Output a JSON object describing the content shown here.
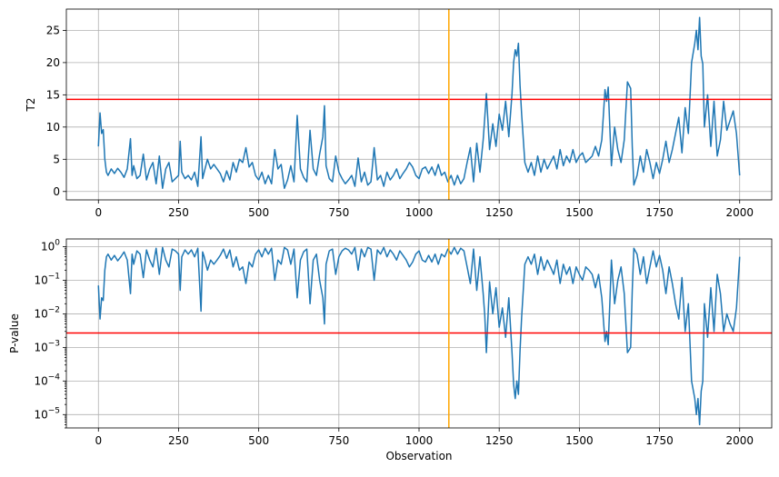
{
  "chart_data": [
    {
      "type": "line",
      "title": "",
      "xlabel": "",
      "ylabel": "T2",
      "xlim": [
        -100,
        2100
      ],
      "ylim": [
        -1.3,
        28.3
      ],
      "xticks": [
        0,
        250,
        500,
        750,
        1000,
        1250,
        1500,
        1750,
        2000
      ],
      "yticks": [
        0,
        5,
        10,
        15,
        20,
        25
      ],
      "grid": true,
      "hlines": [
        {
          "y": 14.3,
          "color": "#ff0000"
        }
      ],
      "vlines": [
        {
          "x": 1093,
          "color": "#ffa500"
        }
      ],
      "series": [
        {
          "color": "#1f77b4",
          "x": [
            0,
            5,
            10,
            15,
            20,
            25,
            30,
            40,
            50,
            60,
            70,
            80,
            90,
            100,
            105,
            110,
            120,
            130,
            140,
            150,
            160,
            170,
            180,
            190,
            200,
            210,
            220,
            230,
            240,
            250,
            255,
            260,
            270,
            280,
            290,
            300,
            310,
            320,
            325,
            330,
            340,
            350,
            360,
            370,
            380,
            390,
            400,
            410,
            420,
            430,
            440,
            450,
            460,
            470,
            480,
            490,
            500,
            510,
            520,
            530,
            540,
            550,
            560,
            570,
            580,
            590,
            600,
            610,
            620,
            630,
            640,
            650,
            660,
            670,
            680,
            690,
            700,
            705,
            710,
            720,
            730,
            740,
            750,
            760,
            770,
            780,
            790,
            800,
            810,
            820,
            830,
            840,
            850,
            860,
            870,
            880,
            890,
            900,
            910,
            920,
            930,
            940,
            950,
            960,
            970,
            980,
            990,
            1000,
            1010,
            1020,
            1030,
            1040,
            1050,
            1060,
            1070,
            1080,
            1090,
            1100,
            1110,
            1120,
            1130,
            1140,
            1150,
            1160,
            1170,
            1180,
            1190,
            1200,
            1205,
            1210,
            1220,
            1230,
            1240,
            1250,
            1260,
            1270,
            1280,
            1290,
            1295,
            1300,
            1305,
            1310,
            1315,
            1320,
            1330,
            1340,
            1350,
            1360,
            1370,
            1380,
            1390,
            1400,
            1410,
            1420,
            1430,
            1440,
            1450,
            1460,
            1470,
            1480,
            1490,
            1500,
            1510,
            1520,
            1530,
            1540,
            1550,
            1560,
            1570,
            1580,
            1585,
            1590,
            1595,
            1600,
            1610,
            1620,
            1630,
            1640,
            1650,
            1660,
            1665,
            1670,
            1680,
            1690,
            1700,
            1710,
            1720,
            1730,
            1740,
            1750,
            1760,
            1770,
            1780,
            1790,
            1800,
            1810,
            1820,
            1830,
            1840,
            1850,
            1860,
            1865,
            1870,
            1875,
            1880,
            1885,
            1890,
            1900,
            1910,
            1920,
            1930,
            1940,
            1950,
            1960,
            1970,
            1980,
            1990,
            2000
          ],
          "y": [
            7,
            12.2,
            9,
            9.6,
            5,
            3,
            2.5,
            3.5,
            2.8,
            3.6,
            3,
            2.2,
            3.5,
            8.2,
            2.5,
            4,
            2,
            2.5,
            5.8,
            1.8,
            3.5,
            4.5,
            1.2,
            5.5,
            0.5,
            3.5,
            4.5,
            1.5,
            2,
            2.5,
            7.8,
            3,
            2,
            2.5,
            1.8,
            3,
            0.8,
            8.5,
            2,
            3,
            5,
            3.5,
            4.2,
            3.5,
            2.8,
            1.5,
            3.2,
            1.8,
            4.5,
            3,
            5,
            4.5,
            6.8,
            3.8,
            4.5,
            2.5,
            1.8,
            3,
            1.2,
            2.5,
            1.2,
            6.5,
            3.5,
            4.2,
            0.5,
            1.8,
            4,
            1.5,
            11.8,
            3.5,
            2.2,
            1.5,
            9.5,
            3.5,
            2.5,
            5.8,
            8.5,
            13.3,
            4,
            2,
            1.5,
            5.5,
            3,
            2,
            1.2,
            1.8,
            2.5,
            0.8,
            5.2,
            1.5,
            3,
            1,
            1.5,
            6.8,
            1.8,
            2.5,
            0.8,
            3,
            1.8,
            2.5,
            3.5,
            2,
            2.8,
            3.5,
            4.5,
            3.8,
            2.5,
            2,
            3.5,
            3.8,
            2.8,
            3.8,
            2.5,
            4.2,
            2.5,
            3,
            1.5,
            2.5,
            1,
            2.5,
            1.2,
            2,
            4.5,
            6.8,
            1.5,
            7.5,
            3,
            8,
            11.5,
            15.2,
            6.5,
            10.5,
            7,
            12,
            9.5,
            14,
            8.5,
            15.2,
            20,
            22,
            21,
            23,
            16.5,
            12,
            4.5,
            3,
            4.5,
            2.5,
            5.5,
            3,
            5,
            3.5,
            4.5,
            5.5,
            3.5,
            6.5,
            4,
            5.5,
            4.5,
            6.5,
            4.5,
            5.5,
            6,
            4.5,
            5,
            5.5,
            7,
            5.5,
            8,
            15.8,
            14,
            16.2,
            10,
            4,
            10,
            6.5,
            4.5,
            8,
            17,
            16,
            7,
            1,
            2.5,
            5.5,
            3,
            6.5,
            4.5,
            2,
            4.5,
            2.8,
            5,
            7.8,
            4.5,
            6.5,
            9,
            11.5,
            6,
            13,
            9,
            20,
            23,
            25,
            22,
            27,
            21,
            19.8,
            10,
            15,
            7,
            14,
            5.5,
            8,
            14,
            9.5,
            11,
            12.5,
            9,
            2.5
          ]
        }
      ]
    },
    {
      "type": "line",
      "title": "",
      "xlabel": "Observation",
      "ylabel": "P-value",
      "scale": "log",
      "xlim": [
        -100,
        2100
      ],
      "ylim": [
        4e-06,
        1.7
      ],
      "xticks": [
        0,
        250,
        500,
        750,
        1000,
        1250,
        1500,
        1750,
        2000
      ],
      "yticks": [
        1e-05,
        0.0001,
        0.001,
        0.01,
        0.1,
        1
      ],
      "ytick_labels": [
        {
          "base": "10",
          "exp": "−5"
        },
        {
          "base": "10",
          "exp": "−4"
        },
        {
          "base": "10",
          "exp": "−3"
        },
        {
          "base": "10",
          "exp": "−2"
        },
        {
          "base": "10",
          "exp": "−1"
        },
        {
          "base": "10",
          "exp": "0"
        }
      ],
      "grid": true,
      "hlines": [
        {
          "y": 0.0027,
          "color": "#ff0000"
        }
      ],
      "vlines": [
        {
          "x": 1093,
          "color": "#ffa500"
        }
      ],
      "series": [
        {
          "color": "#1f77b4",
          "x": [
            0,
            5,
            10,
            15,
            20,
            25,
            30,
            40,
            50,
            60,
            70,
            80,
            90,
            100,
            105,
            110,
            120,
            130,
            140,
            150,
            160,
            170,
            180,
            190,
            200,
            210,
            220,
            230,
            240,
            250,
            255,
            260,
            270,
            280,
            290,
            300,
            310,
            320,
            325,
            330,
            340,
            350,
            360,
            370,
            380,
            390,
            400,
            410,
            420,
            430,
            440,
            450,
            460,
            470,
            480,
            490,
            500,
            510,
            520,
            530,
            540,
            550,
            560,
            570,
            580,
            590,
            600,
            610,
            620,
            630,
            640,
            650,
            660,
            670,
            680,
            690,
            700,
            705,
            710,
            720,
            730,
            740,
            750,
            760,
            770,
            780,
            790,
            800,
            810,
            820,
            830,
            840,
            850,
            860,
            870,
            880,
            890,
            900,
            910,
            920,
            930,
            940,
            950,
            960,
            970,
            980,
            990,
            1000,
            1010,
            1020,
            1030,
            1040,
            1050,
            1060,
            1070,
            1080,
            1090,
            1100,
            1110,
            1120,
            1130,
            1140,
            1150,
            1160,
            1170,
            1180,
            1190,
            1200,
            1205,
            1210,
            1220,
            1230,
            1240,
            1250,
            1260,
            1270,
            1280,
            1290,
            1295,
            1300,
            1305,
            1310,
            1315,
            1320,
            1330,
            1340,
            1350,
            1360,
            1370,
            1380,
            1390,
            1400,
            1410,
            1420,
            1430,
            1440,
            1450,
            1460,
            1470,
            1480,
            1490,
            1500,
            1510,
            1520,
            1530,
            1540,
            1550,
            1560,
            1570,
            1580,
            1585,
            1590,
            1595,
            1600,
            1610,
            1620,
            1630,
            1640,
            1650,
            1660,
            1665,
            1670,
            1680,
            1690,
            1700,
            1710,
            1720,
            1730,
            1740,
            1750,
            1760,
            1770,
            1780,
            1790,
            1800,
            1810,
            1820,
            1830,
            1840,
            1850,
            1860,
            1865,
            1870,
            1875,
            1880,
            1885,
            1890,
            1900,
            1910,
            1920,
            1930,
            1940,
            1950,
            1960,
            1970,
            1980,
            1990,
            2000
          ],
          "y": [
            0.07,
            0.007,
            0.03,
            0.025,
            0.2,
            0.5,
            0.6,
            0.4,
            0.55,
            0.38,
            0.5,
            0.7,
            0.4,
            0.04,
            0.6,
            0.3,
            0.75,
            0.6,
            0.12,
            0.8,
            0.4,
            0.25,
            0.9,
            0.15,
            0.95,
            0.4,
            0.25,
            0.85,
            0.75,
            0.6,
            0.05,
            0.5,
            0.8,
            0.6,
            0.8,
            0.5,
            0.9,
            0.012,
            0.7,
            0.5,
            0.2,
            0.4,
            0.3,
            0.4,
            0.55,
            0.85,
            0.45,
            0.8,
            0.25,
            0.5,
            0.2,
            0.25,
            0.08,
            0.35,
            0.25,
            0.6,
            0.8,
            0.5,
            0.9,
            0.6,
            0.9,
            0.1,
            0.4,
            0.3,
            0.95,
            0.8,
            0.3,
            0.85,
            0.03,
            0.4,
            0.7,
            0.85,
            0.02,
            0.4,
            0.6,
            0.1,
            0.03,
            0.005,
            0.3,
            0.75,
            0.85,
            0.15,
            0.5,
            0.75,
            0.9,
            0.8,
            0.6,
            0.95,
            0.2,
            0.85,
            0.5,
            0.95,
            0.85,
            0.1,
            0.8,
            0.6,
            0.95,
            0.5,
            0.8,
            0.6,
            0.4,
            0.75,
            0.55,
            0.4,
            0.25,
            0.35,
            0.6,
            0.75,
            0.4,
            0.35,
            0.55,
            0.35,
            0.6,
            0.3,
            0.6,
            0.5,
            0.85,
            0.6,
            0.95,
            0.6,
            0.9,
            0.75,
            0.25,
            0.08,
            0.85,
            0.05,
            0.5,
            0.04,
            0.009,
            0.0007,
            0.09,
            0.01,
            0.06,
            0.004,
            0.015,
            0.002,
            0.03,
            0.0007,
            8e-05,
            3e-05,
            0.0001,
            4e-05,
            0.0008,
            0.008,
            0.3,
            0.5,
            0.3,
            0.6,
            0.15,
            0.5,
            0.2,
            0.4,
            0.25,
            0.15,
            0.4,
            0.08,
            0.3,
            0.15,
            0.25,
            0.08,
            0.25,
            0.15,
            0.1,
            0.25,
            0.2,
            0.15,
            0.06,
            0.15,
            0.03,
            0.0015,
            0.003,
            0.0012,
            0.02,
            0.4,
            0.02,
            0.1,
            0.25,
            0.04,
            0.0007,
            0.001,
            0.05,
            0.9,
            0.6,
            0.15,
            0.5,
            0.08,
            0.25,
            0.75,
            0.25,
            0.55,
            0.2,
            0.04,
            0.25,
            0.08,
            0.02,
            0.007,
            0.12,
            0.003,
            0.02,
            0.0001,
            3e-05,
            1e-05,
            3e-05,
            5e-06,
            5e-05,
            0.0001,
            0.02,
            0.002,
            0.06,
            0.003,
            0.15,
            0.04,
            0.003,
            0.01,
            0.005,
            0.003,
            0.015,
            0.5
          ]
        }
      ]
    }
  ]
}
